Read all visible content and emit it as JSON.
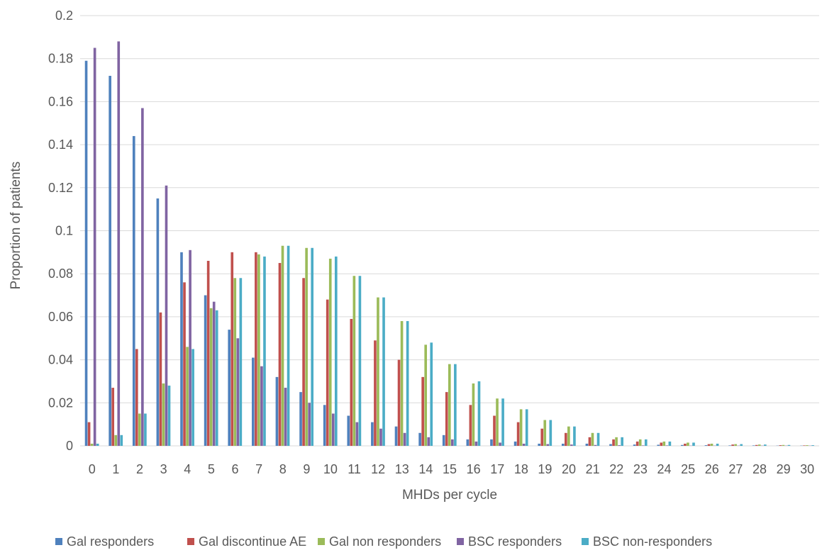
{
  "chart_data": {
    "type": "bar",
    "title": "",
    "xlabel": "MHDs per cycle",
    "ylabel": "Proportion of patients",
    "ylim": [
      0,
      0.2
    ],
    "yticks": [
      0,
      0.02,
      0.04,
      0.06,
      0.08,
      0.1,
      0.12,
      0.14,
      0.16,
      0.18,
      0.2
    ],
    "ytick_labels": [
      "0",
      "0.02",
      "0.04",
      "0.06",
      "0.08",
      "0.1",
      "0.12",
      "0.14",
      "0.16",
      "0.18",
      "0.2"
    ],
    "grid": "horizontal",
    "legend_position": "bottom",
    "categories": [
      "0",
      "1",
      "2",
      "3",
      "4",
      "5",
      "6",
      "7",
      "8",
      "9",
      "10",
      "11",
      "12",
      "13",
      "14",
      "15",
      "16",
      "17",
      "18",
      "19",
      "20",
      "21",
      "22",
      "23",
      "24",
      "25",
      "26",
      "27",
      "28",
      "29",
      "30"
    ],
    "series": [
      {
        "name": "Gal responders",
        "color": "#4f81bd",
        "values": [
          0.179,
          0.172,
          0.144,
          0.115,
          0.09,
          0.07,
          0.054,
          0.041,
          0.032,
          0.025,
          0.019,
          0.014,
          0.011,
          0.009,
          0.006,
          0.005,
          0.003,
          0.003,
          0.002,
          0.001,
          0.001,
          0.001,
          0.0008,
          0.0006,
          0.0005,
          0.0004,
          0.0003,
          0.0002,
          0.0002,
          0.0001,
          0.0001
        ]
      },
      {
        "name": "Gal discontinue AE",
        "color": "#c0504d",
        "values": [
          0.011,
          0.027,
          0.045,
          0.062,
          0.076,
          0.086,
          0.09,
          0.09,
          0.085,
          0.078,
          0.068,
          0.059,
          0.049,
          0.04,
          0.032,
          0.025,
          0.019,
          0.014,
          0.011,
          0.008,
          0.006,
          0.004,
          0.003,
          0.002,
          0.0015,
          0.001,
          0.0008,
          0.0006,
          0.0004,
          0.0003,
          0.0002
        ]
      },
      {
        "name": "Gal non responders",
        "color": "#9bbb59",
        "values": [
          0.001,
          0.005,
          0.015,
          0.029,
          0.046,
          0.064,
          0.078,
          0.089,
          0.093,
          0.092,
          0.087,
          0.079,
          0.069,
          0.058,
          0.047,
          0.038,
          0.029,
          0.022,
          0.017,
          0.012,
          0.009,
          0.006,
          0.004,
          0.003,
          0.002,
          0.0015,
          0.001,
          0.0008,
          0.0006,
          0.0004,
          0.0003
        ]
      },
      {
        "name": "BSC responders",
        "color": "#8064a2",
        "values": [
          0.185,
          0.188,
          0.157,
          0.121,
          0.091,
          0.067,
          0.05,
          0.037,
          0.027,
          0.02,
          0.015,
          0.011,
          0.008,
          0.006,
          0.004,
          0.003,
          0.002,
          0.0015,
          0.001,
          0.0008,
          0.0006,
          0.0004,
          0.0003,
          0.0002,
          0.0002,
          0.0001,
          0.0001,
          0.0001,
          0.0001,
          0.0001,
          0.0001
        ]
      },
      {
        "name": "BSC non-responders",
        "color": "#4bacc6",
        "values": [
          0.001,
          0.005,
          0.015,
          0.028,
          0.045,
          0.063,
          0.078,
          0.088,
          0.093,
          0.092,
          0.088,
          0.079,
          0.069,
          0.058,
          0.048,
          0.038,
          0.03,
          0.022,
          0.017,
          0.012,
          0.009,
          0.006,
          0.004,
          0.003,
          0.002,
          0.0015,
          0.001,
          0.0008,
          0.0006,
          0.0004,
          0.0003
        ]
      }
    ]
  }
}
